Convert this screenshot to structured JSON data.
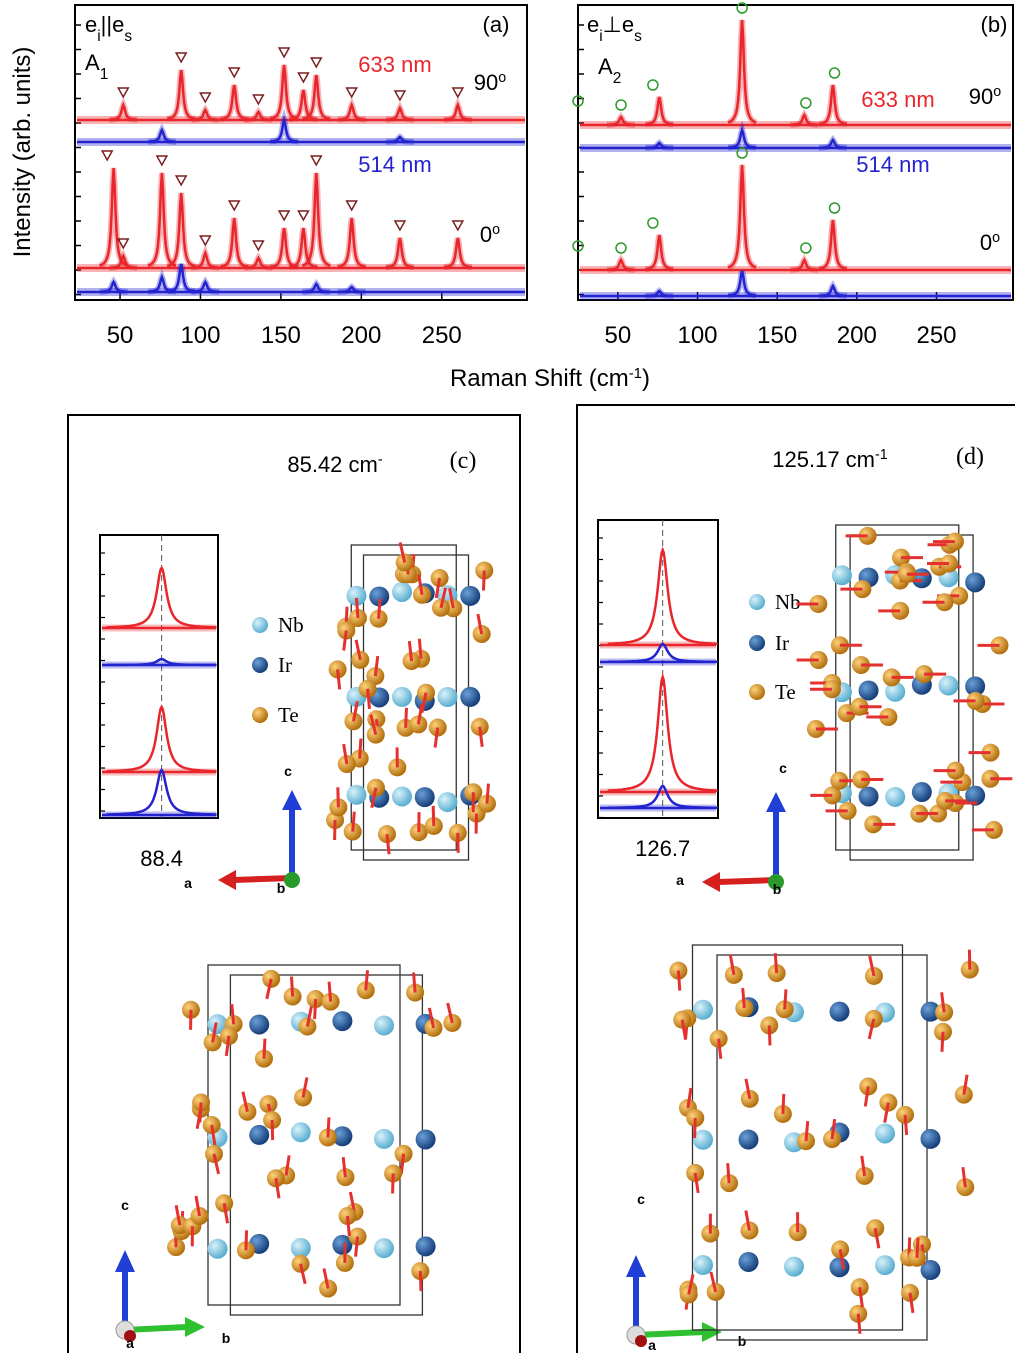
{
  "figure": {
    "y_label": "Intensity (arb. units)",
    "x_label": {
      "text": "Raman Shift (cm",
      "sup": "-1",
      "end": ")"
    }
  },
  "chart_data": [
    {
      "type": "line",
      "panel_label": "(a)",
      "polarization": {
        "e1": "e",
        "sub1": "i",
        "symbol": "||",
        "e2": "e",
        "sub2": "s"
      },
      "mode": {
        "symbol": "A",
        "sub": "1"
      },
      "xlim": [
        22,
        303
      ],
      "xticks": [
        50,
        100,
        150,
        200,
        250
      ],
      "marker": "triangle",
      "marker_color": "#7b1e1e",
      "groups": [
        {
          "angle": "90",
          "angle_sup": "o",
          "series": [
            {
              "name": "633 nm",
              "color": "#e8262b",
              "x": [
                52,
                88,
                103,
                121,
                136,
                152,
                164,
                172,
                194,
                224,
                260
              ],
              "values": [
                15,
                50,
                10,
                35,
                8,
                55,
                30,
                45,
                15,
                12,
                15
              ],
              "markers": [
                52,
                88,
                103,
                121,
                136,
                152,
                164,
                172,
                194,
                224,
                260
              ]
            },
            {
              "name": "514 nm",
              "color": "#2323d0",
              "x": [
                76,
                152,
                224
              ],
              "values": [
                12,
                22,
                5
              ]
            }
          ]
        },
        {
          "angle": "0",
          "angle_sup": "o",
          "series": [
            {
              "color": "#e8262b",
              "x": [
                46,
                52,
                76,
                88,
                103,
                121,
                136,
                152,
                164,
                172,
                194,
                224,
                260
              ],
              "values": [
                100,
                12,
                95,
                75,
                15,
                50,
                10,
                40,
                40,
                95,
                50,
                30,
                30
              ],
              "markers": [
                42,
                52,
                76,
                88,
                103,
                121,
                136,
                152,
                164,
                172,
                194,
                224,
                260
              ]
            },
            {
              "color": "#2323d0",
              "x": [
                46,
                76,
                88,
                103,
                172,
                194
              ],
              "values": [
                10,
                15,
                28,
                10,
                8,
                5
              ]
            }
          ]
        }
      ]
    },
    {
      "type": "line",
      "panel_label": "(b)",
      "polarization": {
        "e1": "e",
        "sub1": "i",
        "symbol": "⊥",
        "e2": "e",
        "sub2": "s"
      },
      "mode": {
        "symbol": "A",
        "sub": "2"
      },
      "xlim": [
        25,
        298
      ],
      "xticks": [
        50,
        100,
        150,
        200,
        250
      ],
      "marker": "circle",
      "marker_color": "#2e9a2e",
      "groups": [
        {
          "angle": "90",
          "angle_sup": "o",
          "series": [
            {
              "name": "633 nm",
              "color": "#e8262b",
              "x": [
                52,
                76,
                128,
                167,
                185
              ],
              "values": [
                8,
                28,
                105,
                10,
                40
              ],
              "markers": [
                25,
                52,
                72,
                128,
                168,
                186
              ]
            },
            {
              "name": "514 nm",
              "color": "#2323d0",
              "x": [
                76,
                128,
                185
              ],
              "values": [
                5,
                18,
                8
              ]
            }
          ]
        },
        {
          "angle": "0",
          "angle_sup": "o",
          "series": [
            {
              "color": "#e8262b",
              "x": [
                52,
                76,
                128,
                167,
                185
              ],
              "values": [
                10,
                35,
                105,
                10,
                50
              ],
              "markers": [
                25,
                52,
                72,
                128,
                168,
                186
              ]
            },
            {
              "color": "#2323d0",
              "x": [
                76,
                128,
                185
              ],
              "values": [
                5,
                25,
                10
              ]
            }
          ]
        }
      ]
    },
    {
      "type": "line",
      "xlim": [
        79,
        97
      ],
      "xticks": [
        88.4
      ],
      "series": [
        {
          "color": "#e8262b",
          "x": [
            88.4
          ],
          "values": [
            60
          ]
        },
        {
          "color": "#2323d0",
          "x": [
            88.4
          ],
          "values": [
            6
          ]
        },
        {
          "color": "#e8262b",
          "x": [
            88.4
          ],
          "values": [
            65
          ]
        },
        {
          "color": "#2323d0",
          "x": [
            88.4
          ],
          "values": [
            45
          ]
        }
      ]
    },
    {
      "type": "line",
      "xlim": [
        117,
        135
      ],
      "xticks": [
        126.7
      ],
      "series": [
        {
          "color": "#e8262b",
          "x": [
            126.7
          ],
          "values": [
            95
          ]
        },
        {
          "color": "#2323d0",
          "x": [
            126.7
          ],
          "values": [
            18
          ]
        },
        {
          "color": "#e8262b",
          "x": [
            126.7
          ],
          "values": [
            115
          ]
        },
        {
          "color": "#2323d0",
          "x": [
            126.7
          ],
          "values": [
            22
          ]
        }
      ]
    }
  ],
  "panels": {
    "c": {
      "label": "(c)",
      "frequency": {
        "text": "85.42 cm",
        "sup": "-"
      },
      "legend": [
        "Nb",
        "Ir",
        "Te"
      ],
      "axes_top": {
        "c": "c",
        "a": "a",
        "b": "b"
      },
      "axes_bottom": {
        "c": "c",
        "b": "b",
        "a": "a"
      }
    },
    "d": {
      "label": "(d)",
      "frequency": {
        "text": "125.17 cm",
        "sup": "-1"
      },
      "legend": [
        "Nb",
        "Ir",
        "Te"
      ],
      "axes_top": {
        "c": "c",
        "a": "a",
        "b": "b"
      },
      "axes_bottom": {
        "c": "c",
        "b": "b",
        "a": "a"
      }
    }
  }
}
